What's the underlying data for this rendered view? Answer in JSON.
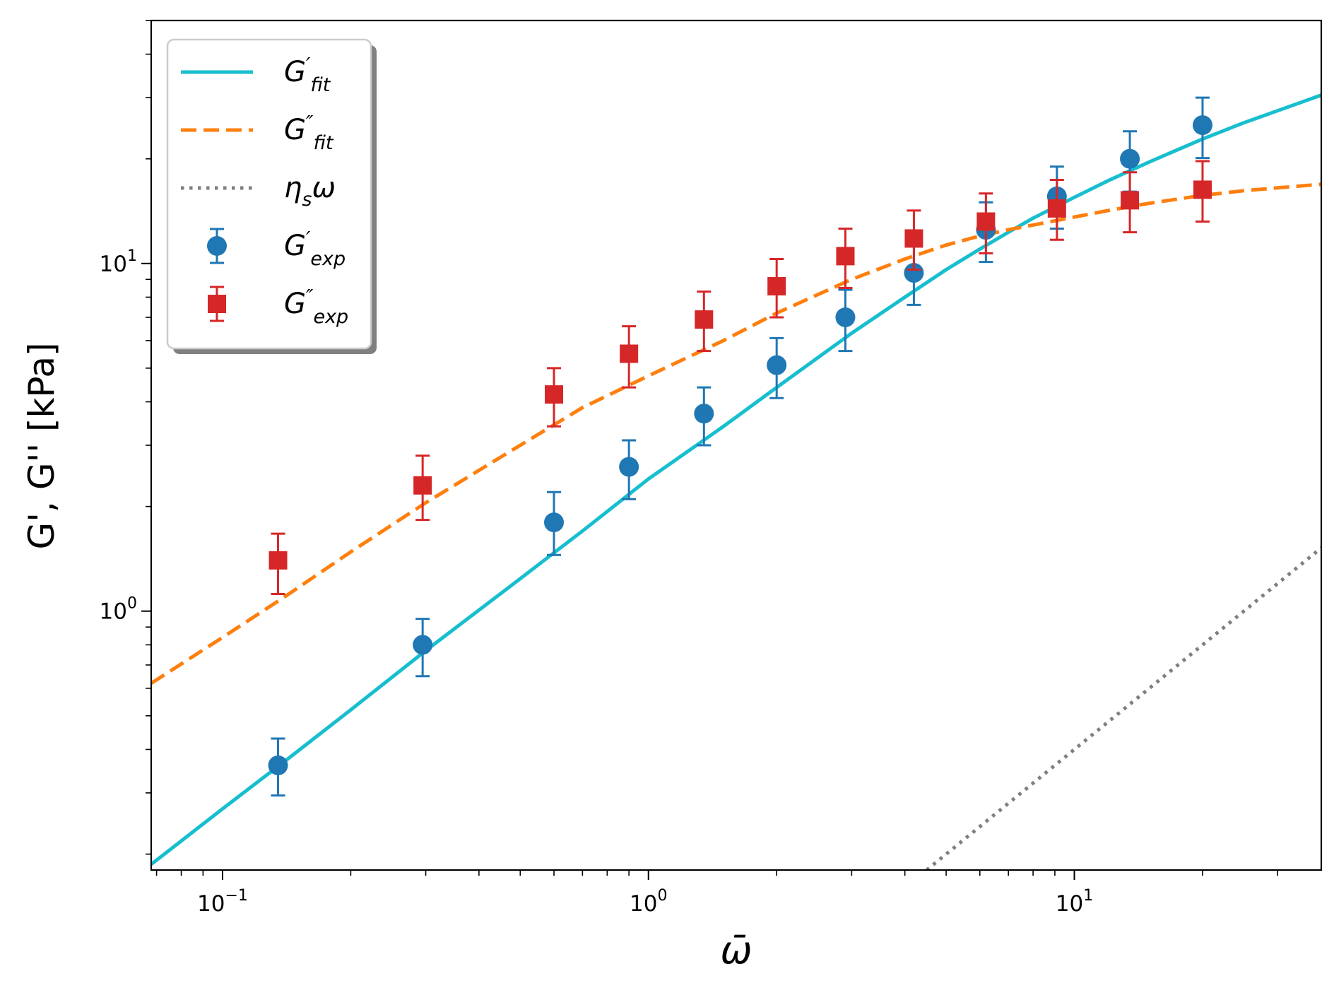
{
  "chart_data": {
    "type": "scatter",
    "xscale": "log",
    "yscale": "log",
    "xlim": [
      0.068,
      38
    ],
    "ylim": [
      0.18,
      50
    ],
    "xlabel": "ω̄",
    "ylabel": "G', G'' [kPa]",
    "x_ticks": [
      {
        "value": 0.1,
        "label": "10",
        "exp": "−1"
      },
      {
        "value": 1,
        "label": "10",
        "exp": "0"
      },
      {
        "value": 10,
        "label": "10",
        "exp": "1"
      }
    ],
    "y_ticks": [
      {
        "value": 1,
        "label": "10",
        "exp": "0"
      },
      {
        "value": 10,
        "label": "10",
        "exp": "1"
      }
    ],
    "legend_position": "top-left",
    "lines": [
      {
        "name": "G'fit",
        "base": "G",
        "prime": "′",
        "sub": "fit",
        "color": "#17becf",
        "style": "solid",
        "x": [
          0.068,
          0.1,
          0.14,
          0.2,
          0.3,
          0.5,
          0.7,
          1.0,
          1.5,
          2.0,
          3.0,
          4.0,
          5.0,
          6.0,
          7.0,
          8.0,
          10.0,
          12.0,
          15.0,
          20.0,
          25.0,
          30.0,
          38.0
        ],
        "y": [
          0.187,
          0.27,
          0.37,
          0.52,
          0.77,
          1.24,
          1.7,
          2.4,
          3.4,
          4.4,
          6.3,
          8.0,
          9.6,
          11.0,
          12.3,
          13.5,
          15.5,
          17.3,
          19.6,
          22.8,
          25.4,
          27.5,
          30.5
        ]
      },
      {
        "name": "G''fit",
        "base": "G",
        "prime": "″",
        "sub": "fit",
        "color": "#ff7f0e",
        "style": "dashed",
        "x": [
          0.068,
          0.1,
          0.14,
          0.2,
          0.3,
          0.5,
          0.7,
          1.0,
          1.5,
          2.0,
          3.0,
          4.0,
          5.0,
          6.0,
          7.0,
          8.0,
          10.0,
          12.0,
          15.0,
          20.0,
          25.0,
          30.0,
          38.0
        ],
        "y": [
          0.62,
          0.84,
          1.1,
          1.48,
          2.05,
          3.0,
          3.85,
          4.75,
          6.0,
          7.2,
          9.0,
          10.3,
          11.3,
          12.0,
          12.5,
          12.9,
          13.6,
          14.2,
          14.9,
          15.7,
          16.2,
          16.5,
          16.9
        ]
      },
      {
        "name": "ηsω",
        "base": "η",
        "prime": "",
        "sub": "s",
        "suffix": "ω",
        "color": "#7f7f7f",
        "style": "dotted",
        "x": [
          4.5,
          10.0,
          20.0,
          38.0
        ],
        "y": [
          0.18,
          0.4,
          0.8,
          1.52
        ]
      }
    ],
    "series": [
      {
        "name": "G'exp",
        "base": "G",
        "prime": "′",
        "sub": "exp",
        "color": "#1f77b4",
        "marker": "circle",
        "x": [
          0.135,
          0.295,
          0.6,
          0.9,
          1.35,
          2.0,
          2.9,
          4.2,
          6.2,
          9.1,
          13.5,
          20.0
        ],
        "y": [
          0.36,
          0.8,
          1.8,
          2.6,
          3.7,
          5.1,
          7.0,
          9.4,
          12.5,
          15.6,
          20.0,
          25.0
        ],
        "yerr_low": [
          0.295,
          0.65,
          1.45,
          2.1,
          3.0,
          4.1,
          5.6,
          7.6,
          10.1,
          12.6,
          16.1,
          20.1
        ],
        "yerr_high": [
          0.43,
          0.95,
          2.2,
          3.1,
          4.4,
          6.1,
          8.4,
          11.2,
          15.0,
          19.0,
          24.0,
          30.0
        ]
      },
      {
        "name": "G''exp",
        "base": "G",
        "prime": "″",
        "sub": "exp",
        "color": "#d62728",
        "marker": "square",
        "x": [
          0.135,
          0.295,
          0.6,
          0.9,
          1.35,
          2.0,
          2.9,
          4.2,
          6.2,
          9.1,
          13.5,
          20.0
        ],
        "y": [
          1.4,
          2.3,
          4.2,
          5.5,
          6.9,
          8.6,
          10.5,
          11.8,
          13.2,
          14.4,
          15.2,
          16.3
        ],
        "yerr_low": [
          1.12,
          1.83,
          3.4,
          4.4,
          5.6,
          7.0,
          8.5,
          9.6,
          10.7,
          11.7,
          12.3,
          13.2
        ],
        "yerr_high": [
          1.67,
          2.8,
          5.0,
          6.6,
          8.3,
          10.3,
          12.6,
          14.2,
          15.9,
          17.4,
          18.3,
          19.7
        ]
      }
    ]
  }
}
